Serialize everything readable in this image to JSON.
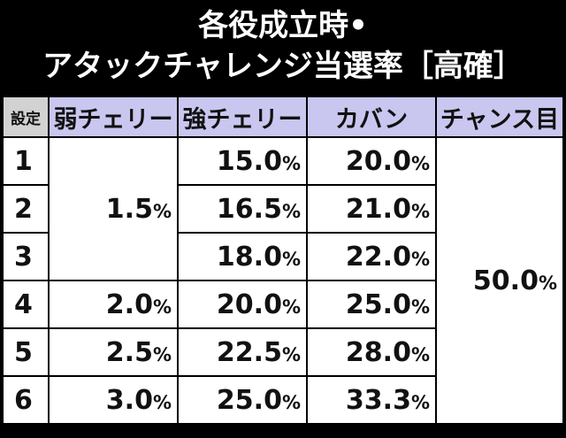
{
  "title": {
    "line1": "各役成立時•",
    "line2": "アタックチャレンジ当選率［高確］"
  },
  "headers": [
    "設定",
    "弱チェリー",
    "強チェリー",
    "カバン",
    "チャンス目"
  ],
  "rows": [
    {
      "setting": "1",
      "weak": "",
      "strong": "15.0",
      "bag": "20.0"
    },
    {
      "setting": "2",
      "weak": "1.5",
      "strong": "16.5",
      "bag": "21.0"
    },
    {
      "setting": "3",
      "weak": "",
      "strong": "18.0",
      "bag": "22.0"
    },
    {
      "setting": "4",
      "weak": "2.0",
      "strong": "20.0",
      "bag": "25.0"
    },
    {
      "setting": "5",
      "weak": "2.5",
      "strong": "22.5",
      "bag": "28.0"
    },
    {
      "setting": "6",
      "weak": "3.0",
      "strong": "25.0",
      "bag": "33.3"
    }
  ],
  "chance_value": "50.0",
  "pct": "%"
}
